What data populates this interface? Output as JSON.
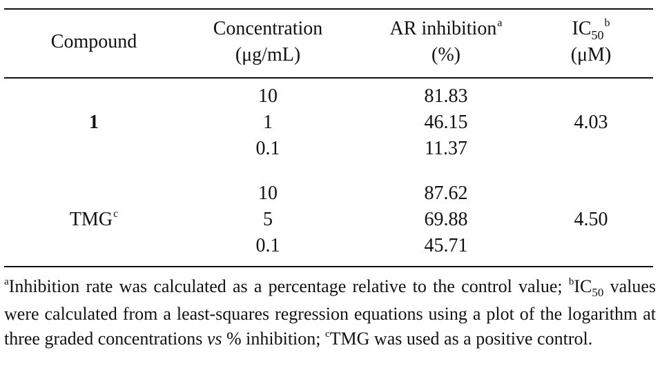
{
  "table": {
    "headers": {
      "compound": "Compound",
      "concentration_line1": "Concentration",
      "concentration_line2": "(μg/mL)",
      "inhibition_line1": "AR inhibition",
      "inhibition_sup": "a",
      "inhibition_line2": "(%)",
      "ic_prefix": "IC",
      "ic_sub": "50",
      "ic_sup": "b",
      "ic_line2": "(μM)"
    },
    "groups": [
      {
        "compound": "1",
        "compound_sup": "",
        "rows": [
          {
            "concentration": "10",
            "inhibition": "81.83"
          },
          {
            "concentration": "1",
            "inhibition": "46.15"
          },
          {
            "concentration": "0.1",
            "inhibition": "11.37"
          }
        ],
        "ic50": "4.03"
      },
      {
        "compound": "TMG",
        "compound_sup": "c",
        "rows": [
          {
            "concentration": "10",
            "inhibition": "87.62"
          },
          {
            "concentration": "5",
            "inhibition": "69.88"
          },
          {
            "concentration": "0.1",
            "inhibition": "45.71"
          }
        ],
        "ic50": "4.50"
      }
    ]
  },
  "footnote": {
    "a_mark": "a",
    "a_text": "Inhibition rate was calculated as a percentage relative to the control value; ",
    "b_mark": "b",
    "b_ic": "IC",
    "b_sub": "50",
    "b_text": " values were calculated from a least-squares regression equations using a plot of the logarithm at three graded concentrations ",
    "b_vs": "vs",
    "b_text2": " % inhibition; ",
    "c_mark": "c",
    "c_text": "TMG was used as a positive control."
  }
}
